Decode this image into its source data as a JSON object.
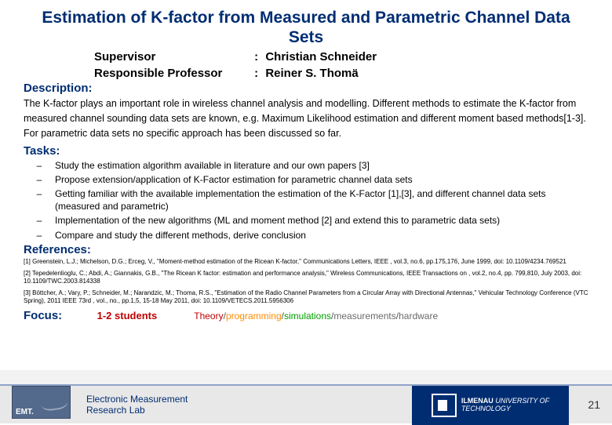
{
  "title": "Estimation of K-factor from Measured and Parametric Channel Data Sets",
  "meta": {
    "supervisor_label": "Supervisor",
    "supervisor_value": "Christian Schneider",
    "prof_label": "Responsible Professor",
    "prof_value": "Reiner S. Thomä"
  },
  "sections": {
    "description_h": "Description:",
    "description_text": "The K-factor plays an important role in wireless channel analysis and modelling. Different methods to estimate the K-factor from measured channel sounding data sets are known, e.g. Maximum Likelihood estimation and different moment based methods[1-3]. For parametric data sets no specific approach has been discussed so far.",
    "tasks_h": "Tasks:",
    "tasks": [
      "Study the estimation algorithm available in literature and our own papers [3]",
      "Propose extension/application of K-Factor estimation for parametric channel data sets",
      "Getting familiar with the available implementation the estimation of the K-Factor [1],[3], and different channel data sets (measured and parametric)",
      "Implementation of the new algorithms (ML and moment method [2] and extend this to parametric data sets)",
      "Compare and study the different methods, derive conclusion"
    ],
    "references_h": "References:",
    "references": [
      "[1] Greenstein, L.J.; Michelson, D.G.; Erceg, V., \"Moment-method estimation of the Ricean K-factor,\"  Communications Letters, IEEE , vol.3, no.6, pp.175,176, June 1999, doi: 10.1109/4234.769521",
      "[2] Tepedelenlioglu, C.; Abdi, A.; Giannakis, G.B., \"The Ricean K factor: estimation and performance analysis,\"  Wireless Communications, IEEE Transactions on , vol.2, no.4, pp. 799,810, July 2003, doi: 10.1109/TWC.2003.814338",
      "[3] Böttcher, A.; Vary, P.; Schneider, M.; Narandzic, M.; Thoma, R.S., \"Estimation of the Radio Channel Parameters from a Circular Array with Directional Antennas,\" Vehicular Technology Conference (VTC Spring), 2011 IEEE 73rd , vol., no., pp.1,5, 15-18 May 2011, doi: 10.1109/VETECS.2011.5956306"
    ],
    "focus_h": "Focus:",
    "focus_students": "1-2 students",
    "focus_cats": {
      "theory": "Theory",
      "programming": "programming",
      "simulations": "simulations",
      "measurements": "measurements",
      "hardware": "hardware"
    }
  },
  "footer": {
    "labname_l1": "Electronic Measurement",
    "labname_l2": "Research Lab",
    "emt": "EMT.",
    "uni_l1": "ILMENAU",
    "uni_l2": "UNIVERSITY OF",
    "uni_l3": "TECHNOLOGY",
    "page": "21"
  },
  "colors": {
    "heading": "#002d72",
    "theory": "#c00000",
    "programming": "#ff8c00",
    "simulations": "#00a000",
    "measurements": "#6a6a6a",
    "hardware": "#6a6a6a",
    "footer_bg": "#e8e8e8",
    "uni_bg": "#002d72"
  }
}
